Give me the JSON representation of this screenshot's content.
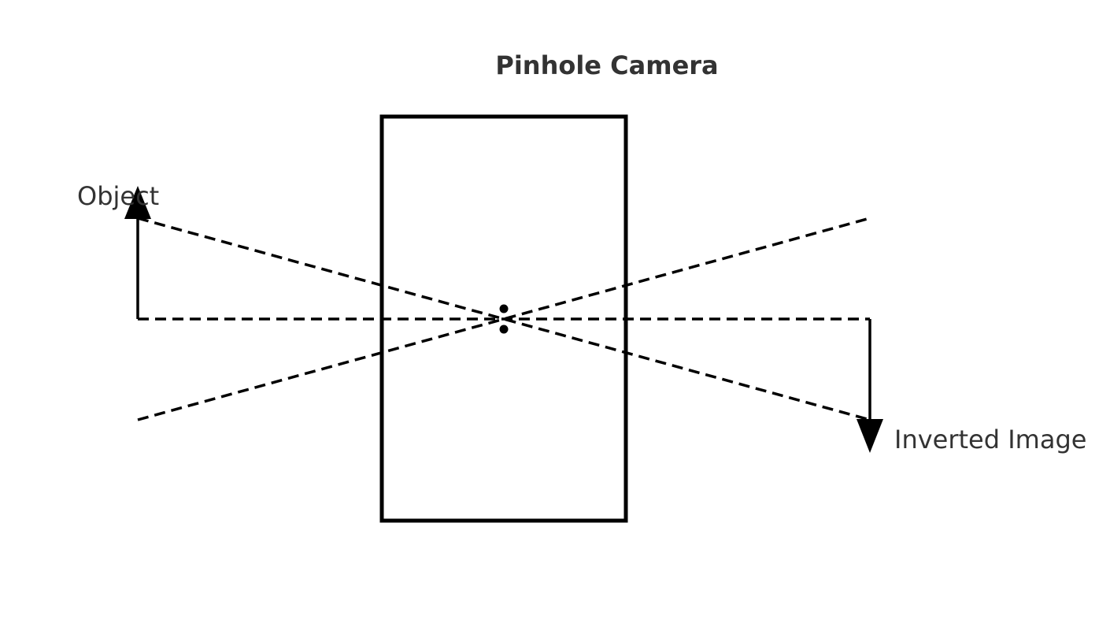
{
  "diagram": {
    "title": "Pinhole Camera",
    "object_label": "Object",
    "image_label": "Inverted Image"
  },
  "colors": {
    "line": "#000000",
    "text": "#333333",
    "background": "#ffffff"
  }
}
